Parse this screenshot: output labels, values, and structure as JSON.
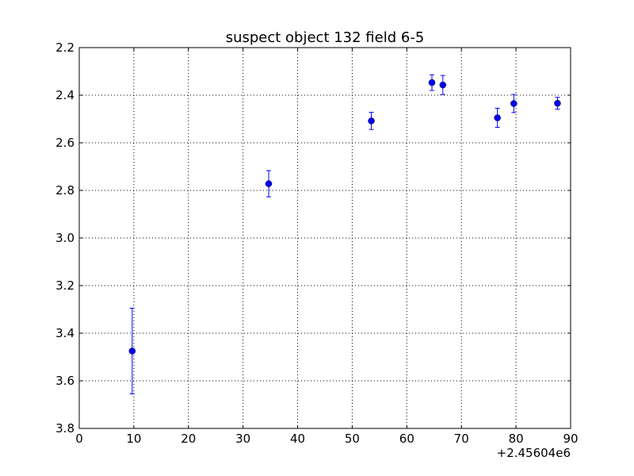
{
  "chart_data": {
    "type": "scatter",
    "title": "suspect object 132 field 6-5",
    "xlabel": "",
    "ylabel": "",
    "x_offset_label": "+2.45604e6",
    "xlim": [
      0,
      90
    ],
    "ylim": [
      2.2,
      3.8
    ],
    "y_inverted": true,
    "grid": true,
    "x_ticks": [
      0,
      10,
      20,
      30,
      40,
      50,
      60,
      70,
      80,
      90
    ],
    "y_ticks": [
      2.2,
      2.4,
      2.6,
      2.8,
      3.0,
      3.2,
      3.4,
      3.6,
      3.8
    ],
    "x_tick_labels": [
      "0",
      "10",
      "20",
      "30",
      "40",
      "50",
      "60",
      "70",
      "80",
      "90"
    ],
    "y_tick_labels": [
      "2.2",
      "2.4",
      "2.6",
      "2.8",
      "3.0",
      "3.2",
      "3.4",
      "3.6",
      "3.8"
    ],
    "series": [
      {
        "color": "#0000ff",
        "points": [
          {
            "x": 9.7,
            "y": 3.475,
            "err": 0.18
          },
          {
            "x": 34.7,
            "y": 2.772,
            "err": 0.055
          },
          {
            "x": 53.5,
            "y": 2.508,
            "err": 0.036
          },
          {
            "x": 64.6,
            "y": 2.347,
            "err": 0.033
          },
          {
            "x": 66.6,
            "y": 2.357,
            "err": 0.04
          },
          {
            "x": 76.6,
            "y": 2.495,
            "err": 0.04
          },
          {
            "x": 79.6,
            "y": 2.435,
            "err": 0.038
          },
          {
            "x": 87.6,
            "y": 2.434,
            "err": 0.025
          }
        ]
      }
    ]
  }
}
